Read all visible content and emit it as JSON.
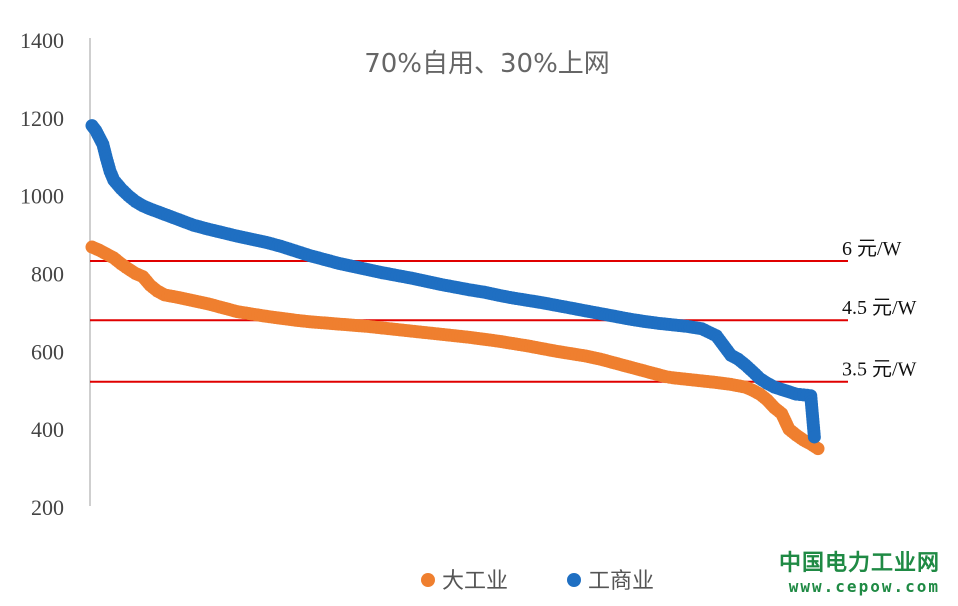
{
  "chart_data": {
    "type": "scatter",
    "title": "70%自用、30%上网",
    "xlabel": "",
    "ylabel": "",
    "ylim": [
      200,
      1400
    ],
    "yticks": [
      200,
      400,
      600,
      800,
      1000,
      1200,
      1400
    ],
    "x_index_range": [
      0,
      100
    ],
    "grid": false,
    "legend_position": "bottom",
    "reference_lines": [
      {
        "label": "6 元/W",
        "value": 832,
        "color": "#e00000"
      },
      {
        "label": "4.5 元/W",
        "value": 680,
        "color": "#e00000"
      },
      {
        "label": "3.5 元/W",
        "value": 522,
        "color": "#e00000"
      }
    ],
    "series": [
      {
        "name": "大工业",
        "color": "#ef7f2f",
        "points": [
          [
            0,
            868
          ],
          [
            1,
            860
          ],
          [
            2,
            850
          ],
          [
            3,
            840
          ],
          [
            4,
            825
          ],
          [
            5,
            812
          ],
          [
            6,
            800
          ],
          [
            7,
            792
          ],
          [
            8,
            770
          ],
          [
            9,
            755
          ],
          [
            10,
            745
          ],
          [
            12,
            738
          ],
          [
            14,
            730
          ],
          [
            16,
            722
          ],
          [
            18,
            712
          ],
          [
            20,
            702
          ],
          [
            22,
            696
          ],
          [
            24,
            690
          ],
          [
            26,
            685
          ],
          [
            28,
            680
          ],
          [
            30,
            676
          ],
          [
            32,
            673
          ],
          [
            34,
            670
          ],
          [
            36,
            667
          ],
          [
            38,
            664
          ],
          [
            40,
            660
          ],
          [
            42,
            656
          ],
          [
            44,
            652
          ],
          [
            46,
            648
          ],
          [
            48,
            644
          ],
          [
            50,
            640
          ],
          [
            52,
            636
          ],
          [
            54,
            631
          ],
          [
            56,
            626
          ],
          [
            58,
            620
          ],
          [
            60,
            614
          ],
          [
            62,
            607
          ],
          [
            64,
            600
          ],
          [
            66,
            594
          ],
          [
            68,
            588
          ],
          [
            70,
            580
          ],
          [
            72,
            570
          ],
          [
            74,
            560
          ],
          [
            76,
            550
          ],
          [
            78,
            540
          ],
          [
            79,
            535
          ],
          [
            80,
            532
          ],
          [
            82,
            528
          ],
          [
            84,
            524
          ],
          [
            86,
            520
          ],
          [
            88,
            515
          ],
          [
            90,
            508
          ],
          [
            91,
            500
          ],
          [
            92,
            490
          ],
          [
            93,
            475
          ],
          [
            94,
            455
          ],
          [
            95,
            440
          ],
          [
            96,
            400
          ],
          [
            97,
            385
          ],
          [
            98,
            372
          ],
          [
            99,
            362
          ],
          [
            100,
            350
          ]
        ]
      },
      {
        "name": "工商业",
        "color": "#1f6fc2",
        "points": [
          [
            0,
            1180
          ],
          [
            0.5,
            1168
          ],
          [
            1,
            1150
          ],
          [
            1.5,
            1132
          ],
          [
            2,
            1095
          ],
          [
            2.5,
            1062
          ],
          [
            3,
            1040
          ],
          [
            4,
            1018
          ],
          [
            5,
            1000
          ],
          [
            6,
            985
          ],
          [
            7,
            974
          ],
          [
            8,
            966
          ],
          [
            10,
            952
          ],
          [
            12,
            938
          ],
          [
            14,
            924
          ],
          [
            16,
            914
          ],
          [
            18,
            905
          ],
          [
            20,
            896
          ],
          [
            22,
            888
          ],
          [
            24,
            880
          ],
          [
            26,
            870
          ],
          [
            28,
            858
          ],
          [
            30,
            846
          ],
          [
            32,
            836
          ],
          [
            34,
            826
          ],
          [
            36,
            818
          ],
          [
            38,
            810
          ],
          [
            40,
            802
          ],
          [
            42,
            795
          ],
          [
            44,
            788
          ],
          [
            46,
            780
          ],
          [
            48,
            772
          ],
          [
            50,
            765
          ],
          [
            52,
            758
          ],
          [
            54,
            752
          ],
          [
            56,
            744
          ],
          [
            58,
            737
          ],
          [
            60,
            731
          ],
          [
            62,
            725
          ],
          [
            64,
            718
          ],
          [
            66,
            711
          ],
          [
            68,
            704
          ],
          [
            70,
            697
          ],
          [
            72,
            690
          ],
          [
            74,
            683
          ],
          [
            76,
            677
          ],
          [
            78,
            672
          ],
          [
            80,
            668
          ],
          [
            82,
            664
          ],
          [
            84,
            658
          ],
          [
            86,
            640
          ],
          [
            87,
            615
          ],
          [
            88,
            590
          ],
          [
            89,
            580
          ],
          [
            90,
            565
          ],
          [
            91,
            548
          ],
          [
            92,
            530
          ],
          [
            93,
            518
          ],
          [
            94,
            508
          ],
          [
            95,
            502
          ],
          [
            96,
            496
          ],
          [
            97,
            490
          ],
          [
            98,
            488
          ],
          [
            99,
            486
          ],
          [
            99.5,
            380
          ]
        ]
      }
    ]
  },
  "watermark": {
    "title": "中国电力工业网",
    "url": "www.cepow.com"
  }
}
